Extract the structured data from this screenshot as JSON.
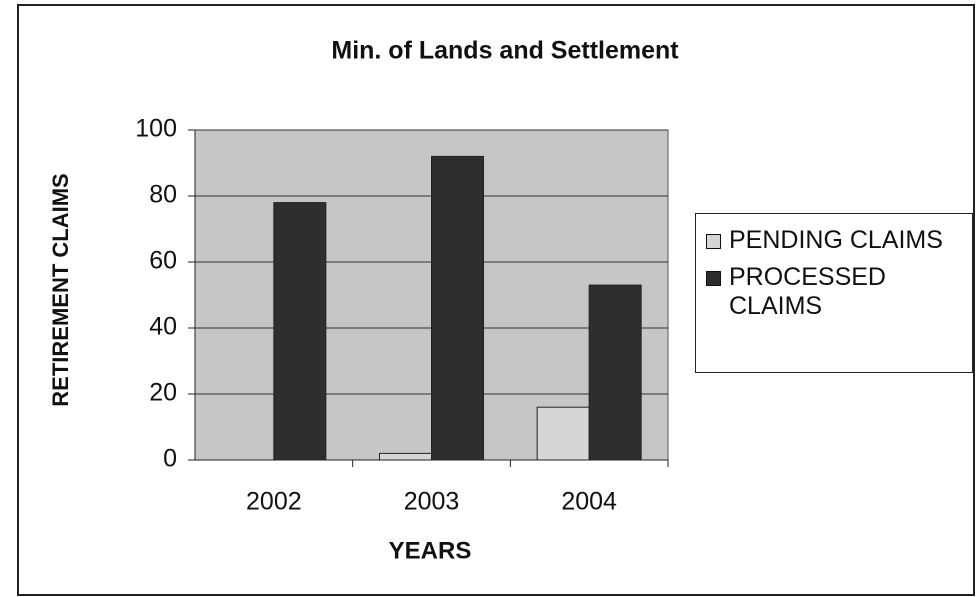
{
  "chart_data": {
    "type": "bar",
    "title": "Min. of Lands and Settlement",
    "x_label": "YEARS",
    "y_label": "RETIREMENT CLAIMS",
    "categories": [
      "2002",
      "2003",
      "2004"
    ],
    "series": [
      {
        "name": "PENDING CLAIMS",
        "color": "#d6d6d6",
        "values": [
          0,
          2,
          16
        ]
      },
      {
        "name": "PROCESSED CLAIMS",
        "color": "#2e2e2e",
        "values": [
          78,
          92,
          53
        ]
      }
    ],
    "ylim": [
      0,
      100
    ],
    "yticks": [
      0,
      20,
      40,
      60,
      80,
      100
    ],
    "grid": true,
    "legend": "right"
  }
}
